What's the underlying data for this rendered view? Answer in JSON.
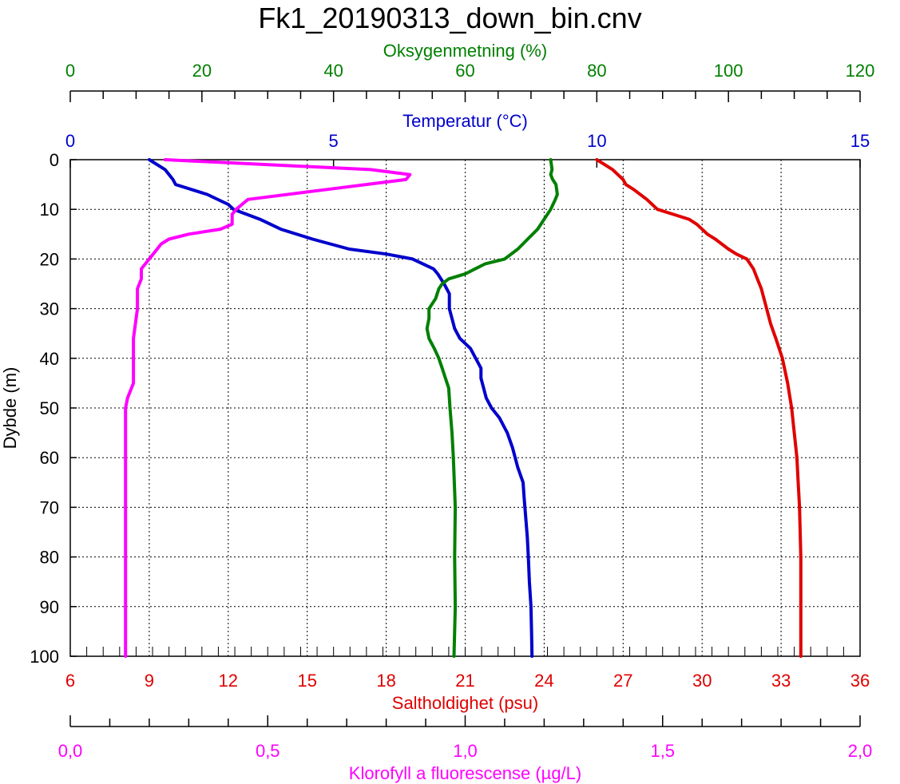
{
  "title": "Fk1_20190313_down_bin.cnv",
  "chart_data": {
    "type": "line",
    "title": "Fk1_20190313_down_bin.cnv",
    "ylabel": "Dybde (m)",
    "ylim": [
      100,
      0
    ],
    "yticks": [
      "0",
      "10",
      "20",
      "30",
      "40",
      "50",
      "60",
      "70",
      "80",
      "90",
      "100"
    ],
    "grid": true,
    "axes": [
      {
        "id": "oxy",
        "label": "Oksygenmetning (%)",
        "position": "top-outer",
        "color": "#008000",
        "range": [
          0,
          120
        ],
        "ticks": [
          "0",
          "20",
          "40",
          "60",
          "80",
          "100",
          "120"
        ]
      },
      {
        "id": "temp",
        "label": "Temperatur (°C)",
        "position": "top-inner",
        "color": "#0000CC",
        "range": [
          0,
          15
        ],
        "ticks": [
          "0",
          "5",
          "10",
          "15"
        ]
      },
      {
        "id": "sal",
        "label": "Saltholdighet (psu)",
        "position": "bottom-inner",
        "color": "#E00000",
        "range": [
          6,
          36
        ],
        "ticks": [
          "6",
          "9",
          "12",
          "15",
          "18",
          "21",
          "24",
          "27",
          "30",
          "33",
          "36"
        ]
      },
      {
        "id": "chl",
        "label": "Klorofyll a fluorescense (µg/L)",
        "position": "bottom-outer",
        "color": "#FF00FF",
        "range": [
          0,
          2
        ],
        "ticks": [
          "0,0",
          "0,5",
          "1,0",
          "1,5",
          "2,0"
        ]
      }
    ],
    "series": [
      {
        "axis": "temp",
        "color": "#0000CC",
        "depth": [
          0,
          2,
          4,
          5,
          7,
          9,
          10,
          12,
          14,
          16,
          18,
          19,
          20,
          22,
          23,
          25,
          27,
          30,
          32,
          34,
          36,
          38,
          40,
          42,
          44,
          46,
          48,
          50,
          52,
          55,
          58,
          62,
          65,
          68,
          72,
          76,
          80,
          85,
          90,
          95,
          100
        ],
        "values": [
          1.5,
          1.8,
          1.95,
          2.0,
          2.6,
          3.0,
          3.1,
          3.6,
          4.0,
          4.6,
          5.3,
          6.0,
          6.5,
          6.9,
          6.98,
          7.1,
          7.2,
          7.2,
          7.25,
          7.3,
          7.4,
          7.6,
          7.7,
          7.8,
          7.8,
          7.85,
          7.9,
          8.0,
          8.15,
          8.3,
          8.4,
          8.5,
          8.6,
          8.62,
          8.65,
          8.68,
          8.7,
          8.72,
          8.75,
          8.76,
          8.77
        ]
      },
      {
        "axis": "oxy",
        "color": "#008000",
        "depth": [
          0,
          2,
          3,
          4,
          5,
          7,
          8,
          10,
          12,
          14,
          16,
          18,
          20,
          21,
          22,
          23,
          24,
          25,
          26,
          28,
          30,
          32,
          34,
          36,
          38,
          40,
          42,
          44,
          46,
          50,
          55,
          60,
          70,
          80,
          90,
          100
        ],
        "values": [
          73.0,
          73.2,
          73.0,
          73.3,
          73.8,
          74.0,
          73.7,
          73.0,
          72.0,
          71.0,
          69.5,
          68.0,
          66.0,
          63.0,
          61.5,
          60.0,
          57.5,
          56.5,
          56.0,
          55.5,
          54.5,
          54.5,
          54.2,
          54.5,
          55.3,
          56.0,
          56.5,
          57.0,
          57.5,
          57.7,
          58.0,
          58.2,
          58.5,
          58.4,
          58.5,
          58.3
        ]
      },
      {
        "axis": "sal",
        "color": "#E00000",
        "depth": [
          0,
          1,
          2,
          3,
          4,
          5,
          6,
          8,
          10,
          11,
          12,
          13,
          14,
          15,
          16,
          18,
          19,
          20,
          22,
          24,
          26,
          28,
          30,
          33,
          36,
          40,
          45,
          50,
          55,
          60,
          65,
          70,
          80,
          90,
          100
        ],
        "values": [
          26.0,
          26.3,
          26.6,
          26.8,
          27.0,
          27.1,
          27.4,
          27.9,
          28.3,
          28.9,
          29.5,
          29.8,
          30.0,
          30.2,
          30.5,
          31.0,
          31.3,
          31.7,
          31.95,
          32.1,
          32.25,
          32.35,
          32.45,
          32.6,
          32.8,
          33.05,
          33.25,
          33.4,
          33.5,
          33.6,
          33.65,
          33.7,
          33.75,
          33.75,
          33.75
        ]
      },
      {
        "axis": "chl",
        "color": "#FF00FF",
        "depth": [
          0,
          2,
          3,
          4,
          6,
          8,
          10,
          11,
          12,
          13,
          14,
          15,
          16,
          17,
          18,
          20,
          22,
          24,
          26,
          28,
          30,
          36,
          40,
          45,
          48,
          50,
          55,
          60,
          70,
          80,
          90,
          100
        ],
        "values": [
          0.24,
          0.76,
          0.86,
          0.85,
          0.65,
          0.45,
          0.42,
          0.41,
          0.41,
          0.41,
          0.38,
          0.3,
          0.25,
          0.23,
          0.22,
          0.2,
          0.18,
          0.18,
          0.17,
          0.17,
          0.17,
          0.16,
          0.16,
          0.16,
          0.145,
          0.14,
          0.14,
          0.14,
          0.14,
          0.14,
          0.14,
          0.14
        ]
      }
    ]
  }
}
